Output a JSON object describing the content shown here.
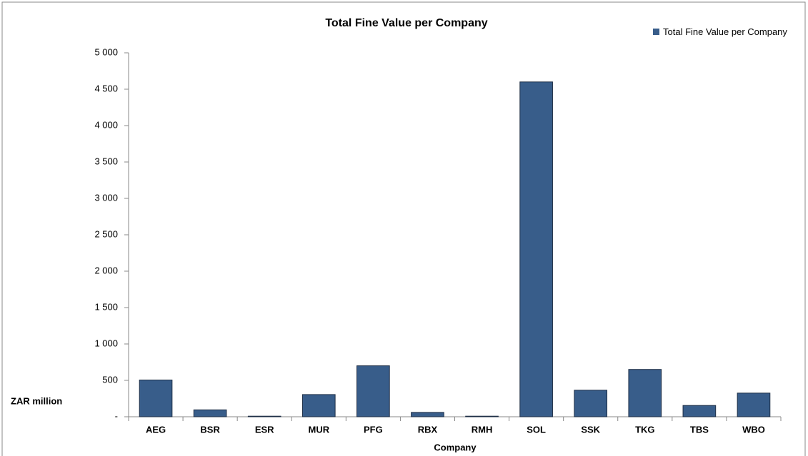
{
  "chart_data": {
    "type": "bar",
    "title": "Total Fine Value per Company",
    "x_label": "Company",
    "y_label": "ZAR million",
    "categories": [
      "AEG",
      "BSR",
      "ESR",
      "MUR",
      "PFG",
      "RBX",
      "RMH",
      "SOL",
      "SSK",
      "TKG",
      "TBS",
      "WBO"
    ],
    "series": [
      {
        "name": "Total Fine Value per Company",
        "color": "#385d8a",
        "values": [
          505,
          95,
          8,
          305,
          700,
          60,
          8,
          4600,
          365,
          650,
          155,
          325
        ]
      }
    ],
    "ylim": [
      0,
      5000
    ],
    "yticks": [
      {
        "value": 0,
        "label": "-"
      },
      500,
      {
        "value": 1000,
        "label": "1 000"
      },
      {
        "value": 1500,
        "label": "1 500"
      },
      {
        "value": 2000,
        "label": "2 000"
      },
      {
        "value": 2500,
        "label": "2 500"
      },
      {
        "value": 3000,
        "label": "3 000"
      },
      {
        "value": 3500,
        "label": "3 500"
      },
      {
        "value": 4000,
        "label": "4 000"
      },
      {
        "value": 4500,
        "label": "4 500"
      },
      {
        "value": 5000,
        "label": "5 000"
      }
    ],
    "grid": false,
    "legend": "top-right"
  }
}
